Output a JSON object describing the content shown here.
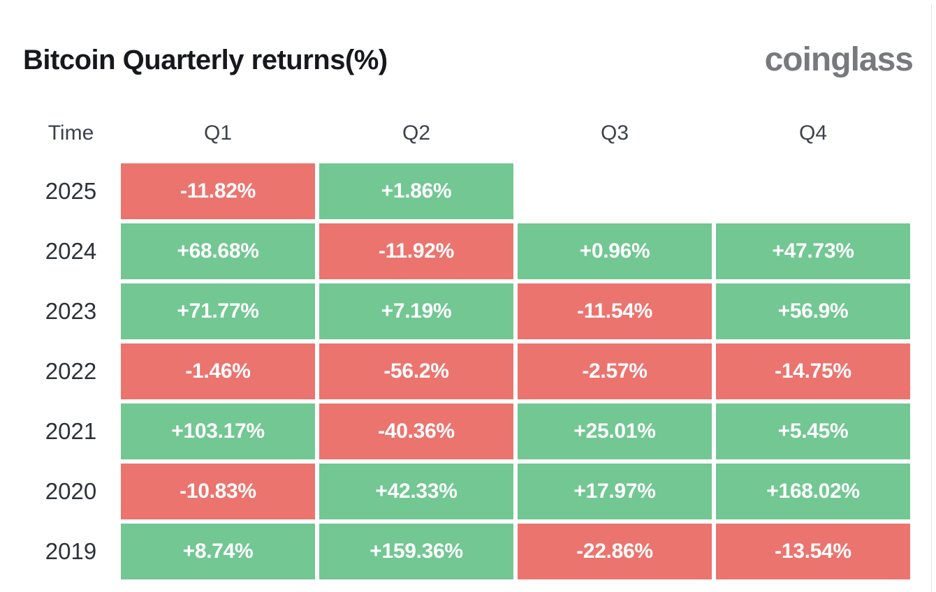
{
  "page": {
    "title": "Bitcoin Quarterly returns(%)",
    "brand": "coinglass"
  },
  "colors": {
    "positive": "#72c793",
    "negative": "#eb746f",
    "cell_text": "#ffffff",
    "title_text": "#17181c",
    "brand_text": "#77797c",
    "header_text": "#3d4149",
    "year_text": "#2e323a"
  },
  "chart_data": {
    "type": "heatmap",
    "title": "Bitcoin Quarterly returns(%)",
    "time_label": "Time",
    "columns": [
      "Q1",
      "Q2",
      "Q3",
      "Q4"
    ],
    "value_unit": "%",
    "color_rule": "positive values green (#72c793), negative values red (#eb746f), missing values blank",
    "rows": [
      {
        "year": "2025",
        "values": [
          -11.82,
          1.86,
          null,
          null
        ],
        "labels": [
          "-11.82%",
          "+1.86%",
          "",
          ""
        ]
      },
      {
        "year": "2024",
        "values": [
          68.68,
          -11.92,
          0.96,
          47.73
        ],
        "labels": [
          "+68.68%",
          "-11.92%",
          "+0.96%",
          "+47.73%"
        ]
      },
      {
        "year": "2023",
        "values": [
          71.77,
          7.19,
          -11.54,
          56.9
        ],
        "labels": [
          "+71.77%",
          "+7.19%",
          "-11.54%",
          "+56.9%"
        ]
      },
      {
        "year": "2022",
        "values": [
          -1.46,
          -56.2,
          -2.57,
          -14.75
        ],
        "labels": [
          "-1.46%",
          "-56.2%",
          "-2.57%",
          "-14.75%"
        ]
      },
      {
        "year": "2021",
        "values": [
          103.17,
          -40.36,
          25.01,
          5.45
        ],
        "labels": [
          "+103.17%",
          "-40.36%",
          "+25.01%",
          "+5.45%"
        ]
      },
      {
        "year": "2020",
        "values": [
          -10.83,
          42.33,
          17.97,
          168.02
        ],
        "labels": [
          "-10.83%",
          "+42.33%",
          "+17.97%",
          "+168.02%"
        ]
      },
      {
        "year": "2019",
        "values": [
          8.74,
          159.36,
          -22.86,
          -13.54
        ],
        "labels": [
          "+8.74%",
          "+159.36%",
          "-22.86%",
          "-13.54%"
        ]
      }
    ]
  }
}
